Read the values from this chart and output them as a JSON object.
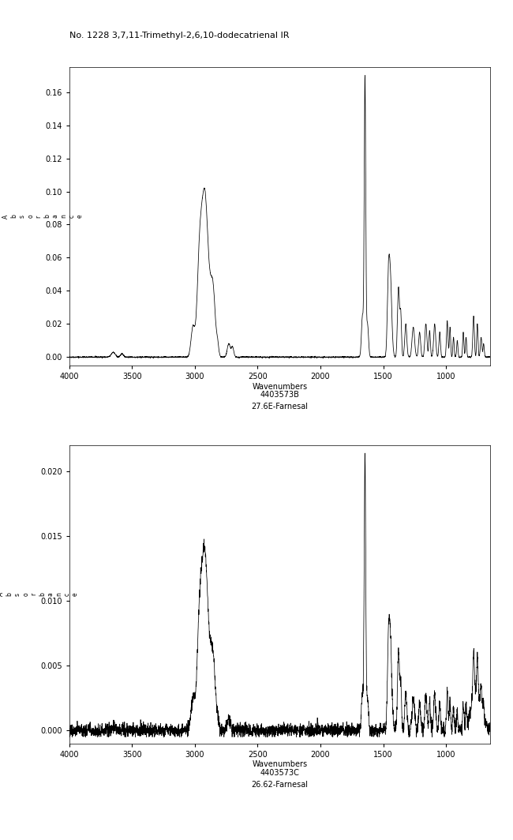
{
  "title": "No. 1228 3,7,11-Trimethyl-2,6,10-dodecatrienal IR",
  "background_color": "#ffffff",
  "panel1": {
    "xlabel": "Wavenumbers",
    "xlabel2": "4403573B",
    "xlabel3": "27.6E-Farnesal",
    "ylabel": "A\nb\ns\no\nr\nb\na\nn\nc\ne",
    "xlim": [
      4000,
      650
    ],
    "ylim": [
      -0.005,
      0.175
    ],
    "yticks": [
      0.0,
      0.02,
      0.04,
      0.06,
      0.08,
      0.1,
      0.12,
      0.14,
      0.16
    ],
    "xticks": [
      4000,
      3500,
      3000,
      2500,
      2000,
      1500,
      1000
    ]
  },
  "panel2": {
    "xlabel": "Wavenumbers",
    "xlabel2": "4403573C",
    "xlabel3": "26.62-Farnesal",
    "ylabel": "A\nb\ns\no\nr\nb\na\nn\nc\ne",
    "xlim": [
      4000,
      650
    ],
    "ylim": [
      -0.001,
      0.022
    ],
    "yticks": [
      0.0,
      0.005,
      0.01,
      0.015,
      0.02
    ],
    "xticks": [
      4000,
      3500,
      3000,
      2500,
      2000,
      1500,
      1000
    ]
  }
}
